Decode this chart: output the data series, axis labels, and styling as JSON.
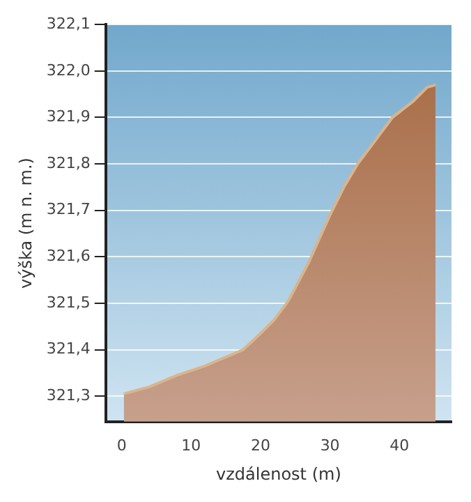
{
  "chart_data": {
    "type": "area",
    "xlabel": "vzdálenost (m)",
    "ylabel": "výška (m n. m.)",
    "x": [
      0.3,
      4,
      8,
      12,
      17.5,
      20,
      22,
      24,
      27,
      30,
      32,
      34,
      37,
      39,
      42,
      44,
      45.2
    ],
    "series": [
      {
        "color": "#a5673f",
        "values": [
          321.305,
          321.32,
          321.345,
          321.365,
          321.4,
          321.435,
          321.465,
          321.505,
          321.59,
          321.69,
          321.75,
          321.8,
          321.86,
          321.9,
          321.935,
          321.965,
          321.97
        ]
      }
    ],
    "xlim": [
      -2.3,
      47.5
    ],
    "xticks": [
      0,
      10,
      20,
      30,
      40
    ],
    "ylim": [
      321.245,
      322.1
    ],
    "yticks": [
      {
        "value": 321.3,
        "label": "321,3"
      },
      {
        "value": 321.4,
        "label": "321,4"
      },
      {
        "value": 321.5,
        "label": "321,5"
      },
      {
        "value": 321.6,
        "label": "321,6"
      },
      {
        "value": 321.7,
        "label": "321,7"
      },
      {
        "value": 321.8,
        "label": "321,8"
      },
      {
        "value": 321.9,
        "label": "321,9"
      },
      {
        "value": 322.0,
        "label": "322,0"
      },
      {
        "value": 322.1,
        "label": "322,1"
      }
    ],
    "grid": "y",
    "legend": false,
    "marker": "none",
    "line_style": "solid"
  }
}
